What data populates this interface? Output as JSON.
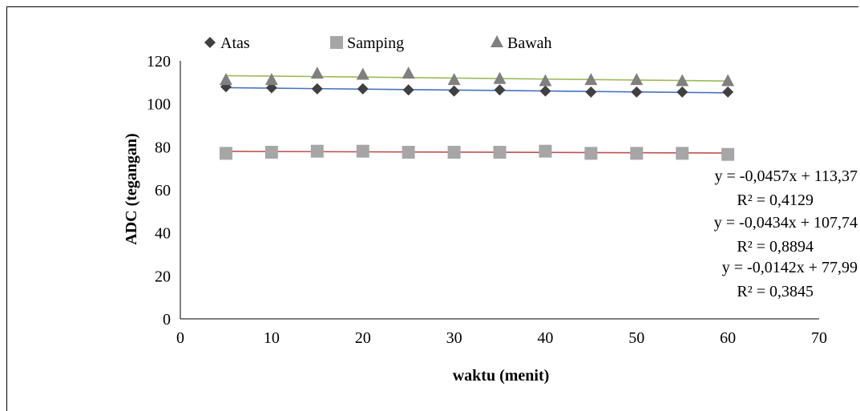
{
  "chart_data": {
    "type": "scatter",
    "xlabel": "waktu (menit)",
    "ylabel": "ADC (tegangan)",
    "xlim": [
      0,
      70
    ],
    "ylim": [
      0,
      120
    ],
    "xticks": [
      0,
      10,
      20,
      30,
      40,
      50,
      60,
      70
    ],
    "yticks": [
      0,
      20,
      40,
      60,
      80,
      100,
      120
    ],
    "grid": false,
    "legend_position": "top",
    "x": [
      5,
      10,
      15,
      20,
      25,
      30,
      35,
      40,
      45,
      50,
      55,
      60
    ],
    "series": [
      {
        "name": "Atas",
        "marker": "diamond",
        "marker_color": "#404040",
        "trend_color": "#4472C4",
        "values": [
          108,
          107.5,
          107,
          107,
          106.5,
          106,
          106.5,
          106,
          105.5,
          105.5,
          105.5,
          105.5
        ],
        "trendline": {
          "slope": -0.0434,
          "intercept": 107.74
        },
        "equation": "y = -0,0434x + 107,74",
        "r2": "R² = 0,8894"
      },
      {
        "name": "Samping",
        "marker": "square",
        "marker_color": "#A6A6A6",
        "trend_color": "#C0504D",
        "values": [
          77,
          77.5,
          78,
          78,
          77.5,
          77.5,
          77.5,
          78,
          77,
          77,
          77,
          76.5
        ],
        "trendline": {
          "slope": -0.0142,
          "intercept": 77.99
        },
        "equation": "y = -0,0142x + 77,99",
        "r2": "R² = 0,3845"
      },
      {
        "name": "Bawah",
        "marker": "triangle",
        "marker_color": "#808080",
        "trend_color": "#9BBB59",
        "values": [
          111,
          111,
          114,
          113.5,
          114,
          111,
          111.5,
          110.5,
          111,
          111,
          110.5,
          110.5
        ],
        "trendline": {
          "slope": -0.0457,
          "intercept": 113.37
        },
        "equation": "y = -0,0457x + 113,37",
        "r2": "R² = 0,4129"
      }
    ]
  }
}
